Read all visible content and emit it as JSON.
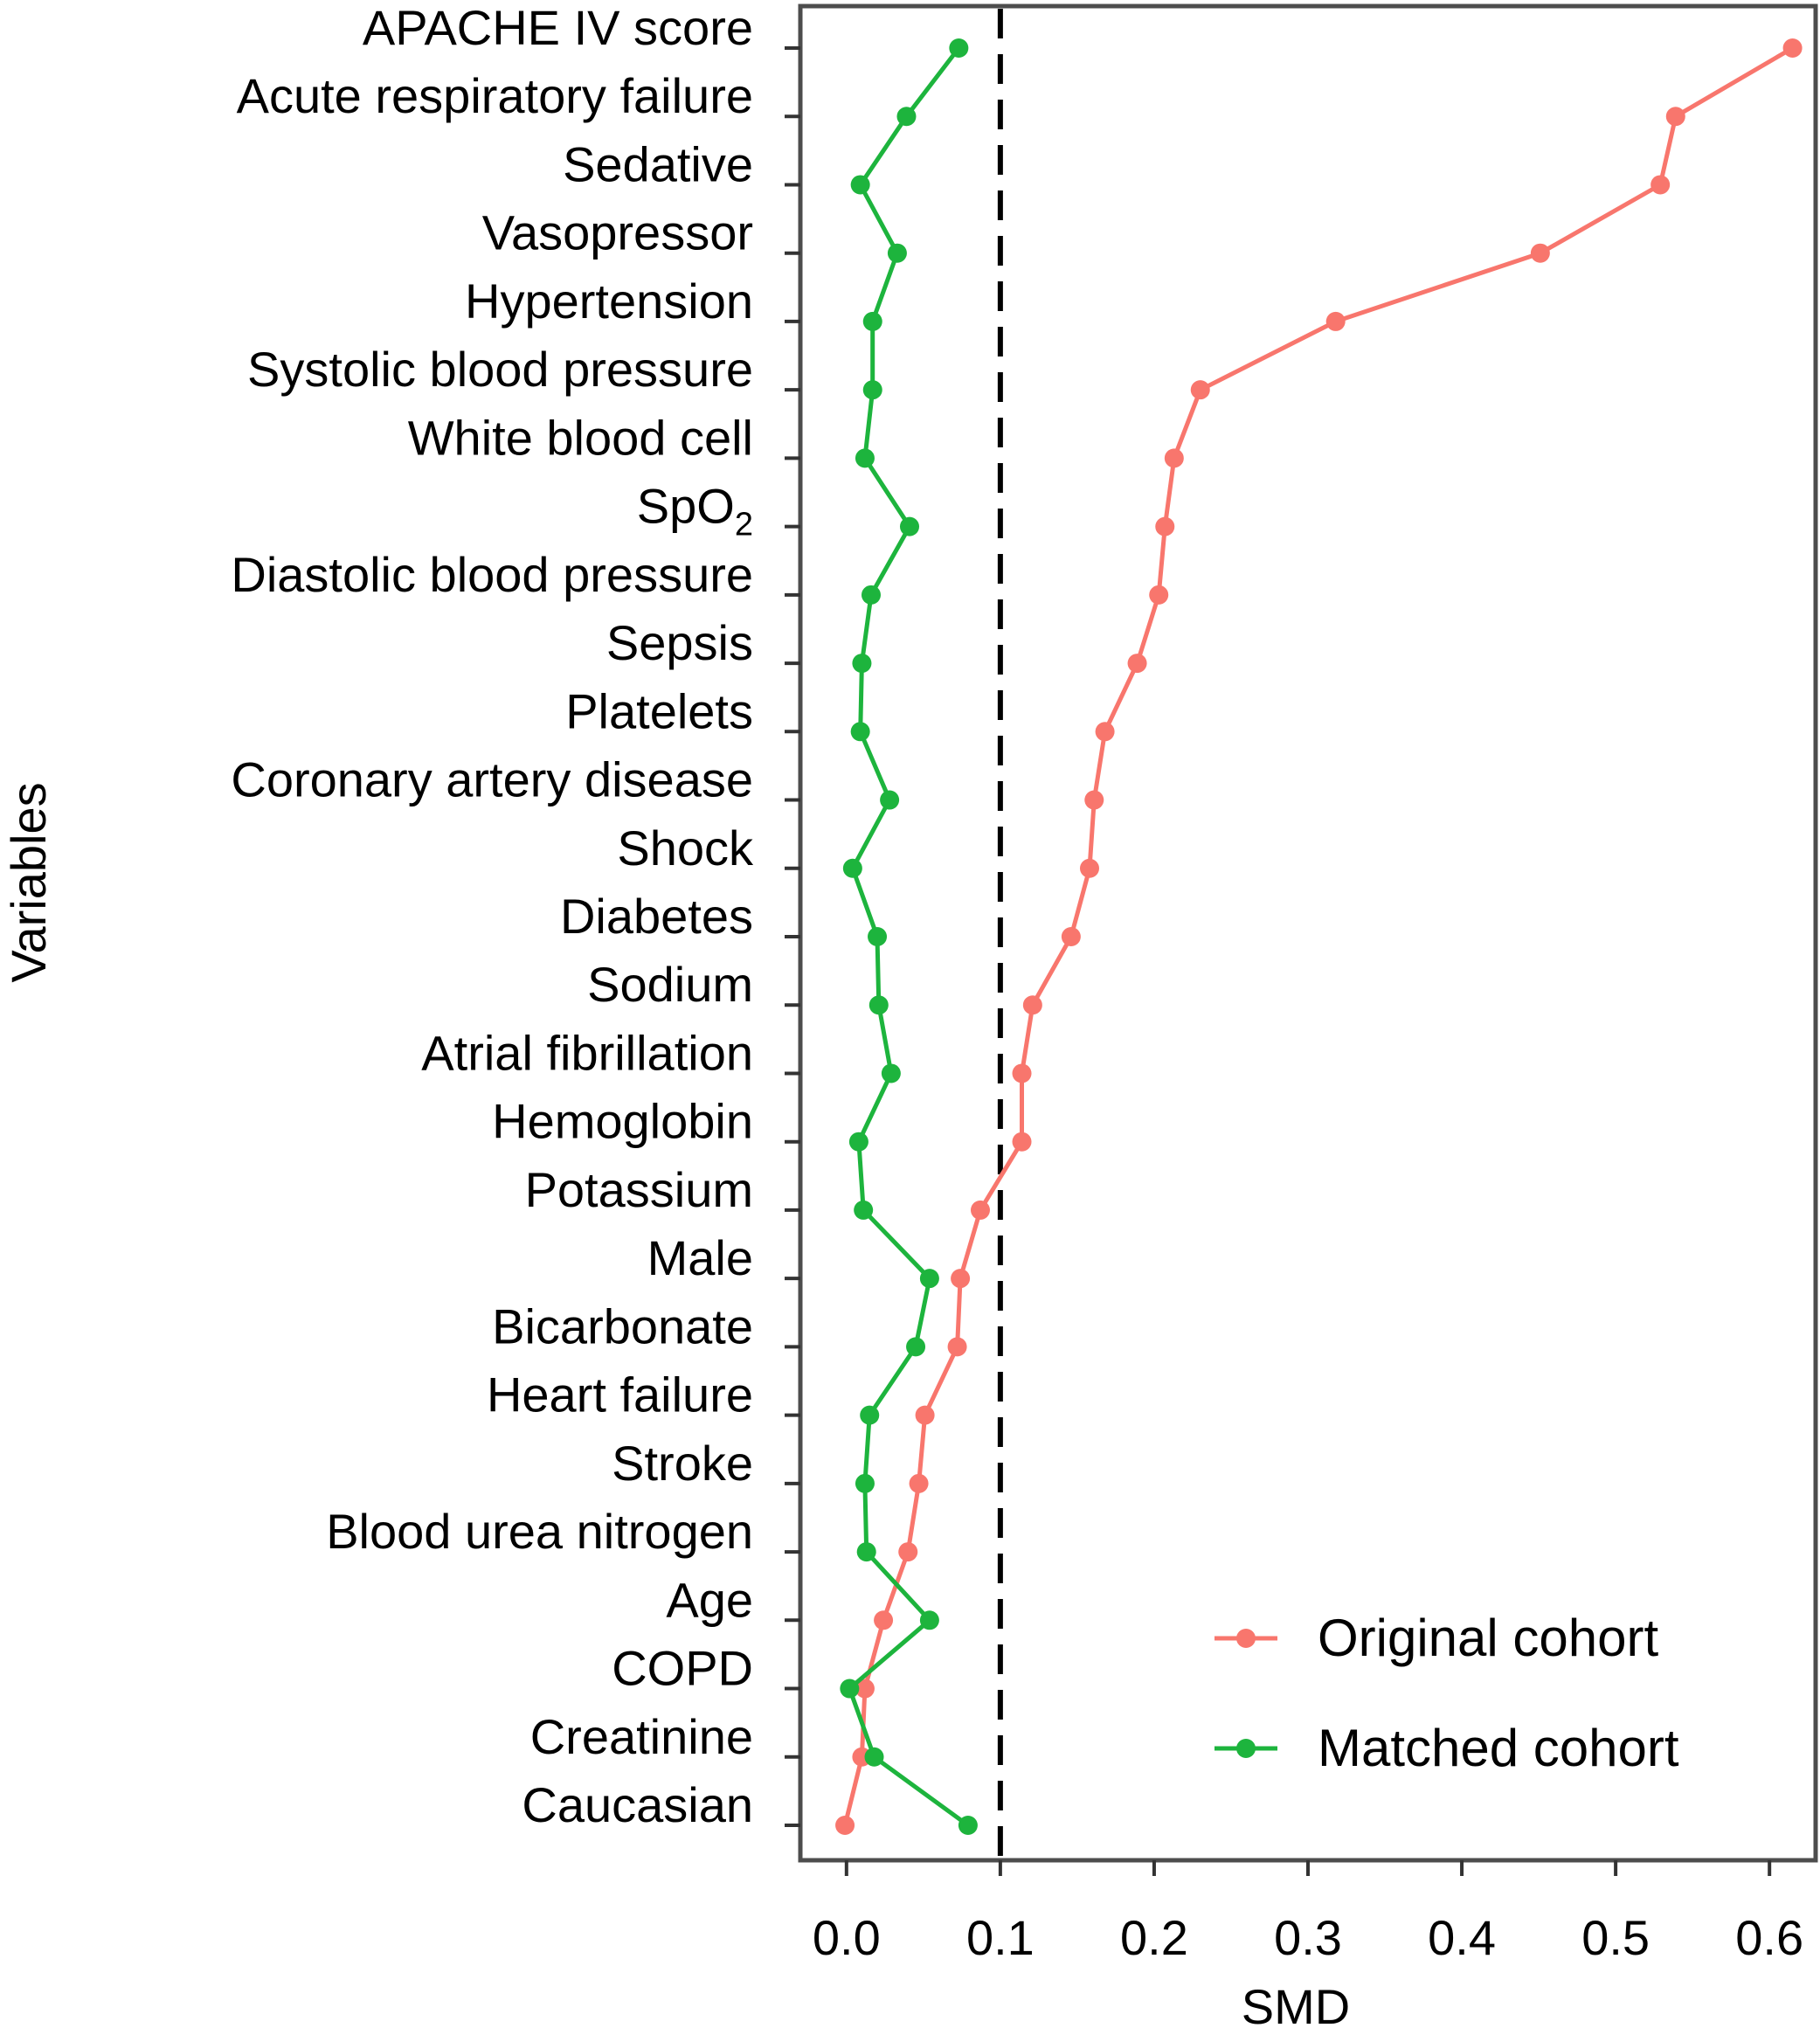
{
  "chart_data": {
    "type": "line",
    "xlabel": "SMD",
    "ylabel": "Variables",
    "xlim": [
      -0.03,
      0.63
    ],
    "xticks": [
      "0.0",
      "0.1",
      "0.2",
      "0.3",
      "0.4",
      "0.5",
      "0.6"
    ],
    "xtick_values": [
      0.0,
      0.1,
      0.2,
      0.3,
      0.4,
      0.5,
      0.6
    ],
    "reference_line": 0.1,
    "grid": false,
    "legend_position": "bottom-right",
    "categories": [
      "APACHE IV score",
      "Acute respiratory failure",
      "Sedative",
      "Vasopressor",
      "Hypertension",
      "Systolic blood pressure",
      "White blood cell",
      "SpO2",
      "Diastolic blood pressure",
      "Sepsis",
      "Platelets",
      "Coronary artery disease",
      "Shock",
      "Diabetes",
      "Sodium",
      "Atrial fibrillation",
      "Hemoglobin",
      "Potassium",
      "Male",
      "Bicarbonate",
      "Heart failure",
      "Stroke",
      "Blood urea nitrogen",
      "Age",
      "COPD",
      "Creatinine",
      "Caucasian"
    ],
    "series": [
      {
        "name": "Original cohort",
        "color": "#f8766d",
        "values": [
          0.615,
          0.539,
          0.529,
          0.451,
          0.318,
          0.23,
          0.213,
          0.207,
          0.203,
          0.189,
          0.168,
          0.161,
          0.158,
          0.146,
          0.121,
          0.114,
          0.114,
          0.087,
          0.074,
          0.072,
          0.051,
          0.047,
          0.04,
          0.024,
          0.012,
          0.01,
          -0.001
        ]
      },
      {
        "name": "Matched cohort",
        "color": "#1db43d",
        "values": [
          0.073,
          0.039,
          0.009,
          0.033,
          0.017,
          0.017,
          0.012,
          0.041,
          0.016,
          0.01,
          0.009,
          0.028,
          0.004,
          0.02,
          0.021,
          0.029,
          0.008,
          0.011,
          0.054,
          0.045,
          0.015,
          0.012,
          0.013,
          0.054,
          0.002,
          0.018,
          0.079
        ]
      }
    ]
  }
}
